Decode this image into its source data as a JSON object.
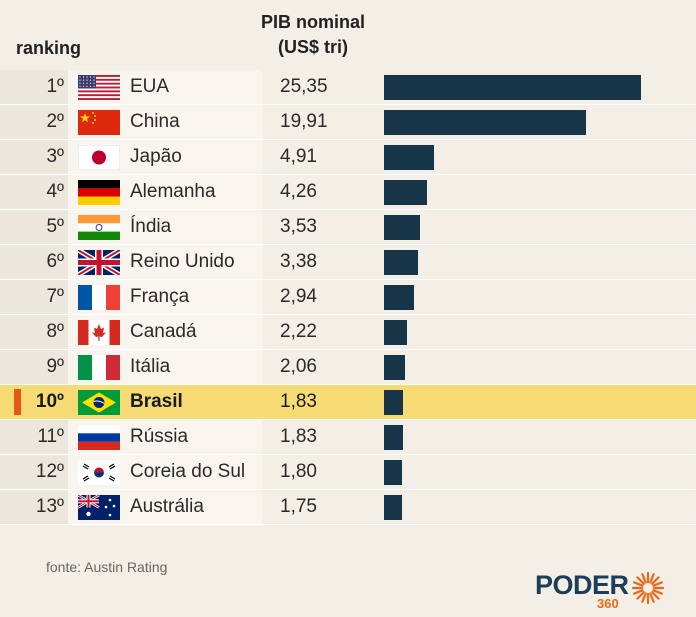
{
  "header": {
    "ranking": "ranking",
    "pib_line1": "PIB nominal",
    "pib_line2": "(US$ tri)"
  },
  "footer": {
    "source": "fonte: Austin Rating",
    "logo_text": "PODER",
    "logo_sub": "360"
  },
  "colors": {
    "bar": "#173548",
    "highlight": "#f6db74",
    "accent": "#e8571a"
  },
  "chart_data": {
    "type": "bar",
    "orientation": "horizontal",
    "xlim": [
      0,
      25.35
    ],
    "highlight": "Brasil",
    "rows": [
      {
        "rank": "1º",
        "country": "EUA",
        "flag": "usa-flag-icon",
        "label": "25,35",
        "value": 25.35
      },
      {
        "rank": "2º",
        "country": "China",
        "flag": "china-flag-icon",
        "label": "19,91",
        "value": 19.91
      },
      {
        "rank": "3º",
        "country": "Japão",
        "flag": "japan-flag-icon",
        "label": "4,91",
        "value": 4.91
      },
      {
        "rank": "4º",
        "country": "Alemanha",
        "flag": "germany-flag-icon",
        "label": "4,26",
        "value": 4.26
      },
      {
        "rank": "5º",
        "country": "Índia",
        "flag": "india-flag-icon",
        "label": "3,53",
        "value": 3.53
      },
      {
        "rank": "6º",
        "country": "Reino Unido",
        "flag": "uk-flag-icon",
        "label": "3,38",
        "value": 3.38
      },
      {
        "rank": "7º",
        "country": "França",
        "flag": "france-flag-icon",
        "label": "2,94",
        "value": 2.94
      },
      {
        "rank": "8º",
        "country": "Canadá",
        "flag": "canada-flag-icon",
        "label": "2,22",
        "value": 2.22
      },
      {
        "rank": "9º",
        "country": "Itália",
        "flag": "italy-flag-icon",
        "label": "2,06",
        "value": 2.06
      },
      {
        "rank": "10º",
        "country": "Brasil",
        "flag": "brazil-flag-icon",
        "label": "1,83",
        "value": 1.83
      },
      {
        "rank": "11º",
        "country": "Rússia",
        "flag": "russia-flag-icon",
        "label": "1,83",
        "value": 1.83
      },
      {
        "rank": "12º",
        "country": "Coreia do Sul",
        "flag": "south-korea-flag-icon",
        "label": "1,80",
        "value": 1.8
      },
      {
        "rank": "13º",
        "country": "Austrália",
        "flag": "australia-flag-icon",
        "label": "1,75",
        "value": 1.75
      }
    ]
  }
}
